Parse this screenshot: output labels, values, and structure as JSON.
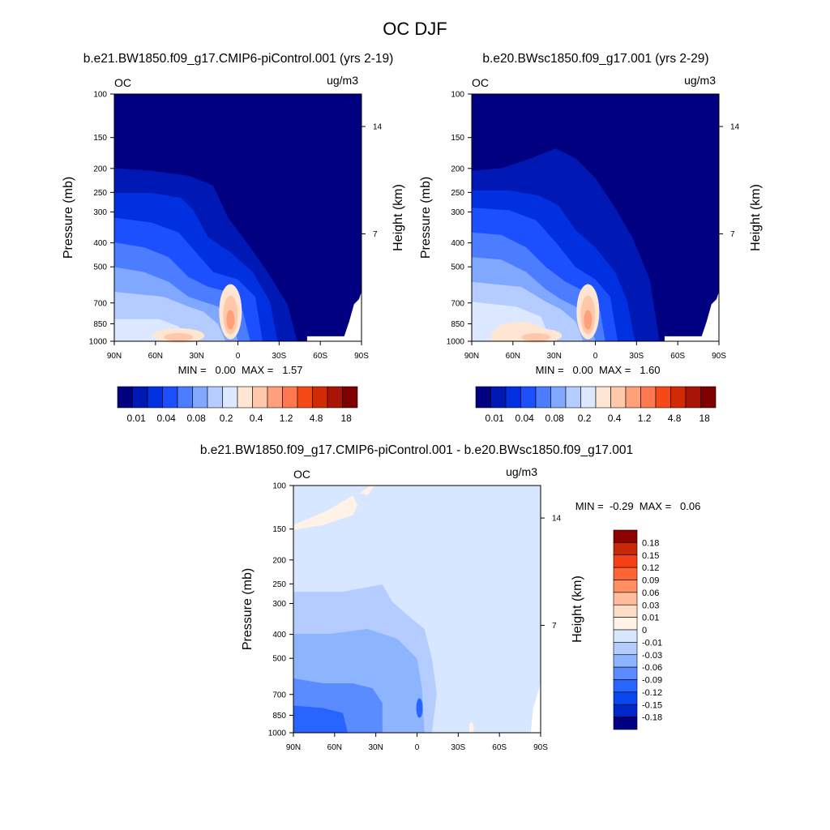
{
  "figure": {
    "title": "OC DJF"
  },
  "colors": {
    "abs": [
      "#000080",
      "#0018b4",
      "#0030e0",
      "#1c50ff",
      "#4c7cff",
      "#80a8ff",
      "#b4ccff",
      "#dce8ff",
      "#ffe6d2",
      "#ffc8aa",
      "#ffa07a",
      "#ff7850",
      "#f54a18",
      "#d22a05",
      "#a81405",
      "#800000"
    ],
    "diff": [
      "#000080",
      "#0028c8",
      "#0a46f0",
      "#2864ff",
      "#5a8cff",
      "#8cb4ff",
      "#b4ccff",
      "#d6e7ff",
      "#fff2e6",
      "#ffdcc6",
      "#ffbc9a",
      "#ff8e62",
      "#ff6436",
      "#f54014",
      "#c82808",
      "#8c0000"
    ],
    "background": "#ffffff"
  },
  "chart_data": [
    {
      "type": "heatmap",
      "title": "b.e21.BW1850.f09_g17.CMIP6-piControl.001 (yrs 2-19)",
      "left_label": "OC",
      "right_label": "ug/m3",
      "xlabel": "",
      "ylabel": "Pressure (mb)",
      "ylabel_right": "Height (km)",
      "x_ticks": [
        "90N",
        "60N",
        "30N",
        "0",
        "30S",
        "60S",
        "90S"
      ],
      "y_ticks": [
        100,
        150,
        200,
        250,
        300,
        400,
        500,
        700,
        850,
        1000
      ],
      "y_right_ticks": [
        14,
        7
      ],
      "xlim": [
        90,
        -90
      ],
      "ylim": [
        1000,
        100
      ],
      "y_scale": "log",
      "stats": "MIN =   0.00  MAX =   1.57",
      "colorbar_labels": [
        "0.01",
        "0.04",
        "0.08",
        "0.2",
        "0.4",
        "1.2",
        "4.8",
        "18"
      ],
      "colorbar_levels": 16
    },
    {
      "type": "heatmap",
      "title": "b.e20.BWsc1850.f09_g17.001 (yrs 2-29)",
      "left_label": "OC",
      "right_label": "ug/m3",
      "xlabel": "",
      "ylabel": "Pressure (mb)",
      "ylabel_right": "Height (km)",
      "x_ticks": [
        "90N",
        "60N",
        "30N",
        "0",
        "30S",
        "60S",
        "90S"
      ],
      "y_ticks": [
        100,
        150,
        200,
        250,
        300,
        400,
        500,
        700,
        850,
        1000
      ],
      "y_right_ticks": [
        14,
        7
      ],
      "xlim": [
        90,
        -90
      ],
      "ylim": [
        1000,
        100
      ],
      "y_scale": "log",
      "stats": "MIN =   0.00  MAX =   1.60",
      "colorbar_labels": [
        "0.01",
        "0.04",
        "0.08",
        "0.2",
        "0.4",
        "1.2",
        "4.8",
        "18"
      ],
      "colorbar_levels": 16
    },
    {
      "type": "heatmap",
      "title": "b.e21.BW1850.f09_g17.CMIP6-piControl.001 - b.e20.BWsc1850.f09_g17.001",
      "left_label": "OC",
      "right_label": "ug/m3",
      "xlabel": "",
      "ylabel": "Pressure (mb)",
      "ylabel_right": "Height (km)",
      "x_ticks": [
        "90N",
        "60N",
        "30N",
        "0",
        "30S",
        "60S",
        "90S"
      ],
      "y_ticks": [
        100,
        150,
        200,
        250,
        300,
        400,
        500,
        700,
        850,
        1000
      ],
      "y_right_ticks": [
        14,
        7
      ],
      "xlim": [
        90,
        -90
      ],
      "ylim": [
        1000,
        100
      ],
      "y_scale": "log",
      "stats": "MIN =  -0.29  MAX =   0.06",
      "colorbar_labels": [
        "0.18",
        "0.15",
        "0.12",
        "0.09",
        "0.06",
        "0.03",
        "0.01",
        "0",
        "-0.01",
        "-0.03",
        "-0.06",
        "-0.09",
        "-0.12",
        "-0.15",
        "-0.18"
      ],
      "colorbar_levels": 16
    }
  ]
}
